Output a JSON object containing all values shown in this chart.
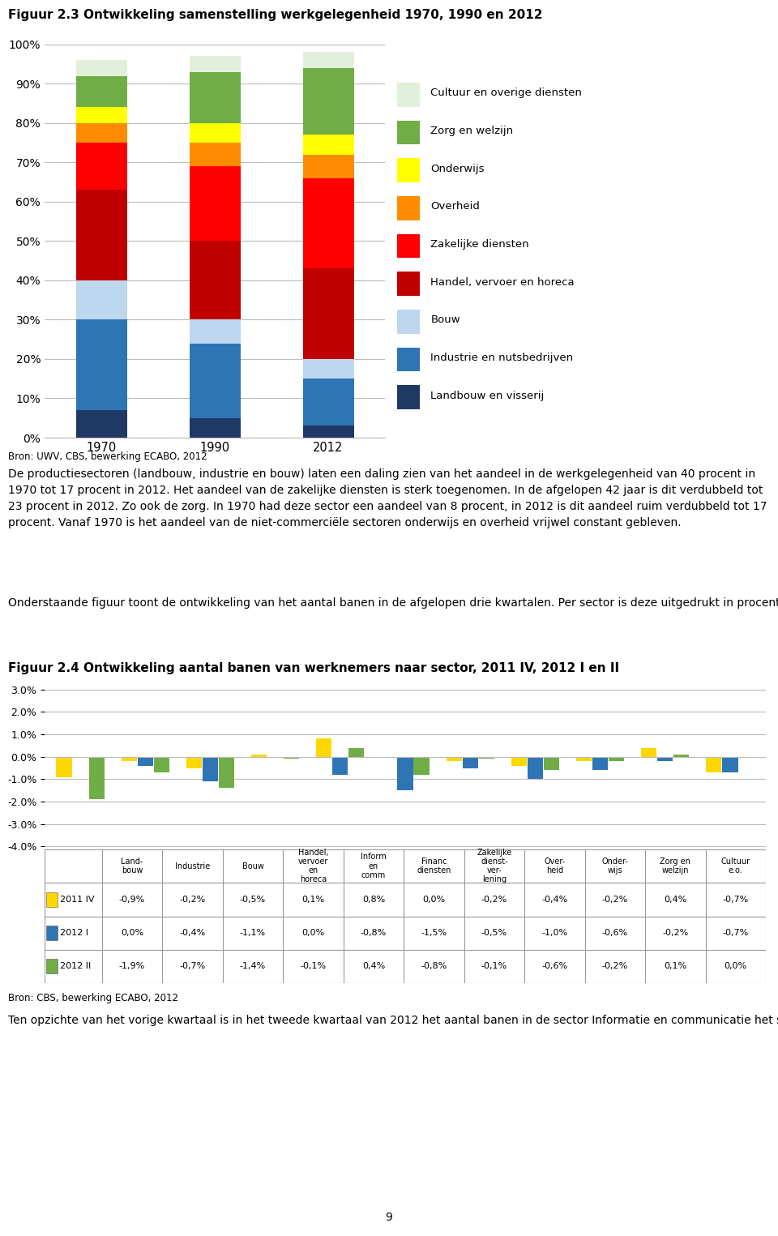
{
  "title1": "Figuur 2.3 Ontwikkeling samenstelling werkgelegenheid 1970, 1990 en 2012",
  "title2": "Figuur 2.4 Ontwikkeling aantal banen van werknemers naar sector, 2011 IV, 2012 I en II",
  "source1": "Bron: UWV, CBS, bewerking ECABO, 2012",
  "source2": "Bron: CBS, bewerking ECABO, 2012",
  "footnote": "9",
  "stacked_years": [
    "1970",
    "1990",
    "2012"
  ],
  "stacked_categories": [
    "Landbouw en visserij",
    "Industrie en nutsbedrijven",
    "Bouw",
    "Handel, vervoer en horeca",
    "Zakelijke diensten",
    "Overheid",
    "Onderwijs",
    "Zorg en welzijn",
    "Cultuur en overige diensten"
  ],
  "stacked_colors": [
    "#1F3864",
    "#2E75B6",
    "#BDD7EE",
    "#C00000",
    "#FF0000",
    "#FF8C00",
    "#FFFF00",
    "#70AD47",
    "#E2EFDA"
  ],
  "stacked_data": {
    "1970": [
      7,
      23,
      10,
      23,
      12,
      5,
      4,
      8,
      4
    ],
    "1990": [
      5,
      19,
      6,
      20,
      19,
      6,
      5,
      13,
      4
    ],
    "2012": [
      3,
      12,
      5,
      23,
      23,
      6,
      5,
      17,
      4
    ]
  },
  "grouped_categories": [
    "Land-\nbouw",
    "Industrie",
    "Bouw",
    "Handel,\nvervoer\nen\nhoreca",
    "Inform\nen\ncomm",
    "Financ\ndiensten",
    "Zakelijke\ndienst-\nver-\nlening",
    "Over-\nheid",
    "Onder-\nwijs",
    "Zorg en\nwelzijn",
    "Cultuur\ne.o."
  ],
  "grouped_categories_table": [
    "Land-\nbouw",
    "Industrie",
    "Bouw",
    "Handel,\nvervoer\nen\nhoreca",
    "Inform\nen\ncomm",
    "Financ\ndiensten",
    "Zakelijke\ndienst-\nver-\nlening",
    "Over-\nheid",
    "Onder-\nwijs",
    "Zorg en\nwelzijn",
    "Cultuur\ne.o."
  ],
  "grouped_series": [
    "2011 IV",
    "2012 I",
    "2012 II"
  ],
  "grouped_colors": [
    "#FFD700",
    "#2E75B6",
    "#70AD47"
  ],
  "grouped_data": {
    "2011 IV": [
      -0.9,
      -0.2,
      -0.5,
      0.1,
      0.8,
      0.0,
      -0.2,
      -0.4,
      -0.2,
      0.4,
      -0.7
    ],
    "2012 I": [
      0.0,
      -0.4,
      -1.1,
      0.0,
      -0.8,
      -1.5,
      -0.5,
      -1.0,
      -0.6,
      -0.2,
      -0.7
    ],
    "2012 II": [
      -1.9,
      -0.7,
      -1.4,
      -0.1,
      0.4,
      -0.8,
      -0.1,
      -0.6,
      -0.2,
      0.1,
      0.0
    ]
  },
  "text_para1": "De productiesectoren (landbouw, industrie en bouw) laten een daling zien van het aandeel in de werkgelegenheid van 40 procent in 1970 tot 17 procent in 2012. Het aandeel van de zakelijke diensten is sterk toegenomen. In de afgelopen 42 jaar is dit verdubbeld tot 23 procent in 2012. Zo ook de zorg. In 1970 had deze sector een aandeel van 8 procent, in 2012 is dit aandeel ruim verdubbeld tot 17 procent. Vanaf 1970 is het aandeel van de niet-commerciële sectoren onderwijs en overheid vrijwel constant gebleven.",
  "text_para2": "Onderstaande figuur toont de ontwikkeling van het aantal banen in de afgelopen drie kwartalen. Per sector is deze uitgedrukt in procenten ten opzichte van het vorige kwartaal.",
  "text_para3": "Ten opzichte van het vorige kwartaal is in het tweede kwartaal van 2012 het aantal banen in de sector Informatie en communicatie het sterkst gestegen. Ook het aantal banen in de zorg en welzijn is licht"
}
